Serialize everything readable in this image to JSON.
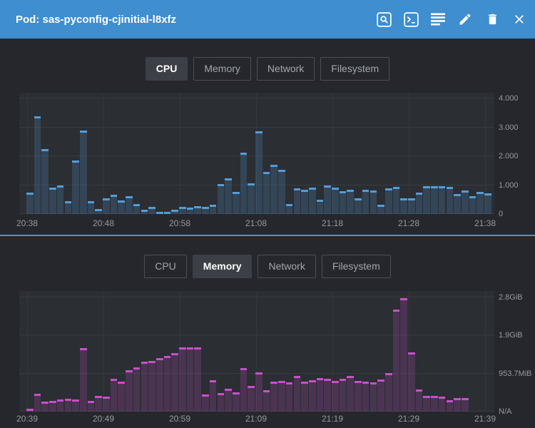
{
  "header": {
    "title": "Pod: sas-pyconfig-cjinitial-l8xfz",
    "actions": [
      "search",
      "exec-shell",
      "view-logs",
      "edit",
      "delete",
      "close"
    ]
  },
  "colors": {
    "header_bg": "#3e8ed0",
    "page_bg": "#25272c",
    "plot_bg": "#2b2e33",
    "panel_divider": "#3e9ae2",
    "cpu_bar": "#539dd8",
    "memory_bar": "#c850cb",
    "axis_text": "#96999e"
  },
  "panels": [
    {
      "name": "cpu",
      "tabs": [
        {
          "label": "CPU",
          "active": true
        },
        {
          "label": "Memory",
          "active": false
        },
        {
          "label": "Network",
          "active": false
        },
        {
          "label": "Filesystem",
          "active": false
        }
      ]
    },
    {
      "name": "memory",
      "tabs": [
        {
          "label": "CPU",
          "active": false
        },
        {
          "label": "Memory",
          "active": true
        },
        {
          "label": "Network",
          "active": false
        },
        {
          "label": "Filesystem",
          "active": false
        }
      ]
    }
  ],
  "chart_data": [
    {
      "id": "cpu",
      "type": "bar",
      "metric": "CPU",
      "unit": "cores",
      "legend_position": "none",
      "grid": true,
      "x_ticks": [
        "20:38",
        "20:48",
        "20:58",
        "21:08",
        "21:18",
        "21:28",
        "21:38"
      ],
      "y_ticks": [
        {
          "label": "0",
          "value": 0
        },
        {
          "label": "1.000",
          "value": 1
        },
        {
          "label": "2.000",
          "value": 2
        },
        {
          "label": "3.000",
          "value": 3
        },
        {
          "label": "4.000",
          "value": 4
        }
      ],
      "ylim": [
        0,
        4.21
      ],
      "bar_color": "#539dd8",
      "bar_fill": "rgba(83,157,216,0.22)",
      "values": [
        0.75,
        3.4,
        2.25,
        0.92,
        1.0,
        0.45,
        1.85,
        2.9,
        0.45,
        0.17,
        0.55,
        0.66,
        0.48,
        0.62,
        0.36,
        0.15,
        0.24,
        0.08,
        0.05,
        0.15,
        0.24,
        0.22,
        0.28,
        0.25,
        0.32,
        1.05,
        1.25,
        0.76,
        2.12,
        1.06,
        2.88,
        1.46,
        1.7,
        1.53,
        0.35,
        0.9,
        0.84,
        0.92,
        0.5,
        0.98,
        0.92,
        0.8,
        0.84,
        0.55,
        0.84,
        0.83,
        0.33,
        0.9,
        0.93,
        0.54,
        0.54,
        0.74,
        0.97,
        0.97,
        0.96,
        0.95,
        0.7,
        0.83,
        0.62,
        0.78,
        0.72
      ]
    },
    {
      "id": "memory",
      "type": "bar",
      "metric": "Memory",
      "unit": "GiB",
      "legend_position": "none",
      "grid": true,
      "x_ticks": [
        "20:39",
        "20:49",
        "20:59",
        "21:09",
        "21:19",
        "21:29",
        "21:39"
      ],
      "y_ticks": [
        {
          "label": "N/A",
          "value": 0
        },
        {
          "label": "953.7MiB",
          "value": 0.9313
        },
        {
          "label": "1.9GiB",
          "value": 1.8626
        },
        {
          "label": "2.8GiB",
          "value": 2.794
        }
      ],
      "ylim": [
        0,
        2.95
      ],
      "bar_color": "#c850cb",
      "bar_fill": "rgba(200,80,203,0.2)",
      "values": [
        0.07,
        0.44,
        0.24,
        0.27,
        0.3,
        0.31,
        0.3,
        1.56,
        0.27,
        0.38,
        0.37,
        0.8,
        0.73,
        1.01,
        1.08,
        1.22,
        1.24,
        1.31,
        1.36,
        1.44,
        1.57,
        1.57,
        1.57,
        0.42,
        0.77,
        0.46,
        0.56,
        0.48,
        1.06,
        0.63,
        0.96,
        0.53,
        0.73,
        0.76,
        0.72,
        0.88,
        0.73,
        0.77,
        0.83,
        0.81,
        0.76,
        0.81,
        0.87,
        0.75,
        0.73,
        0.72,
        0.79,
        0.94,
        2.49,
        2.77,
        1.45,
        0.55,
        0.38,
        0.39,
        0.37,
        0.28,
        0.34,
        0.33
      ]
    }
  ]
}
